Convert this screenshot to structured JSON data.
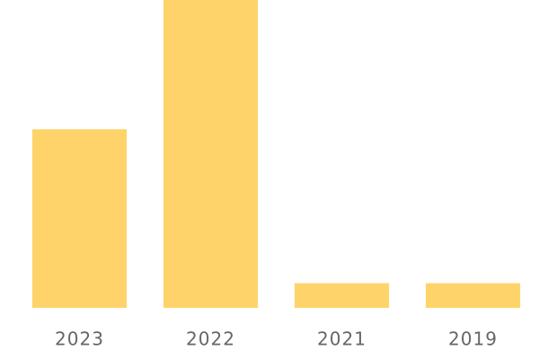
{
  "chart_data": {
    "type": "bar",
    "categories": [
      "2023",
      "2022",
      "2021",
      "2019"
    ],
    "values": [
      58,
      100,
      8,
      8
    ],
    "color": "#fed46a",
    "ylim": [
      0,
      100
    ]
  }
}
